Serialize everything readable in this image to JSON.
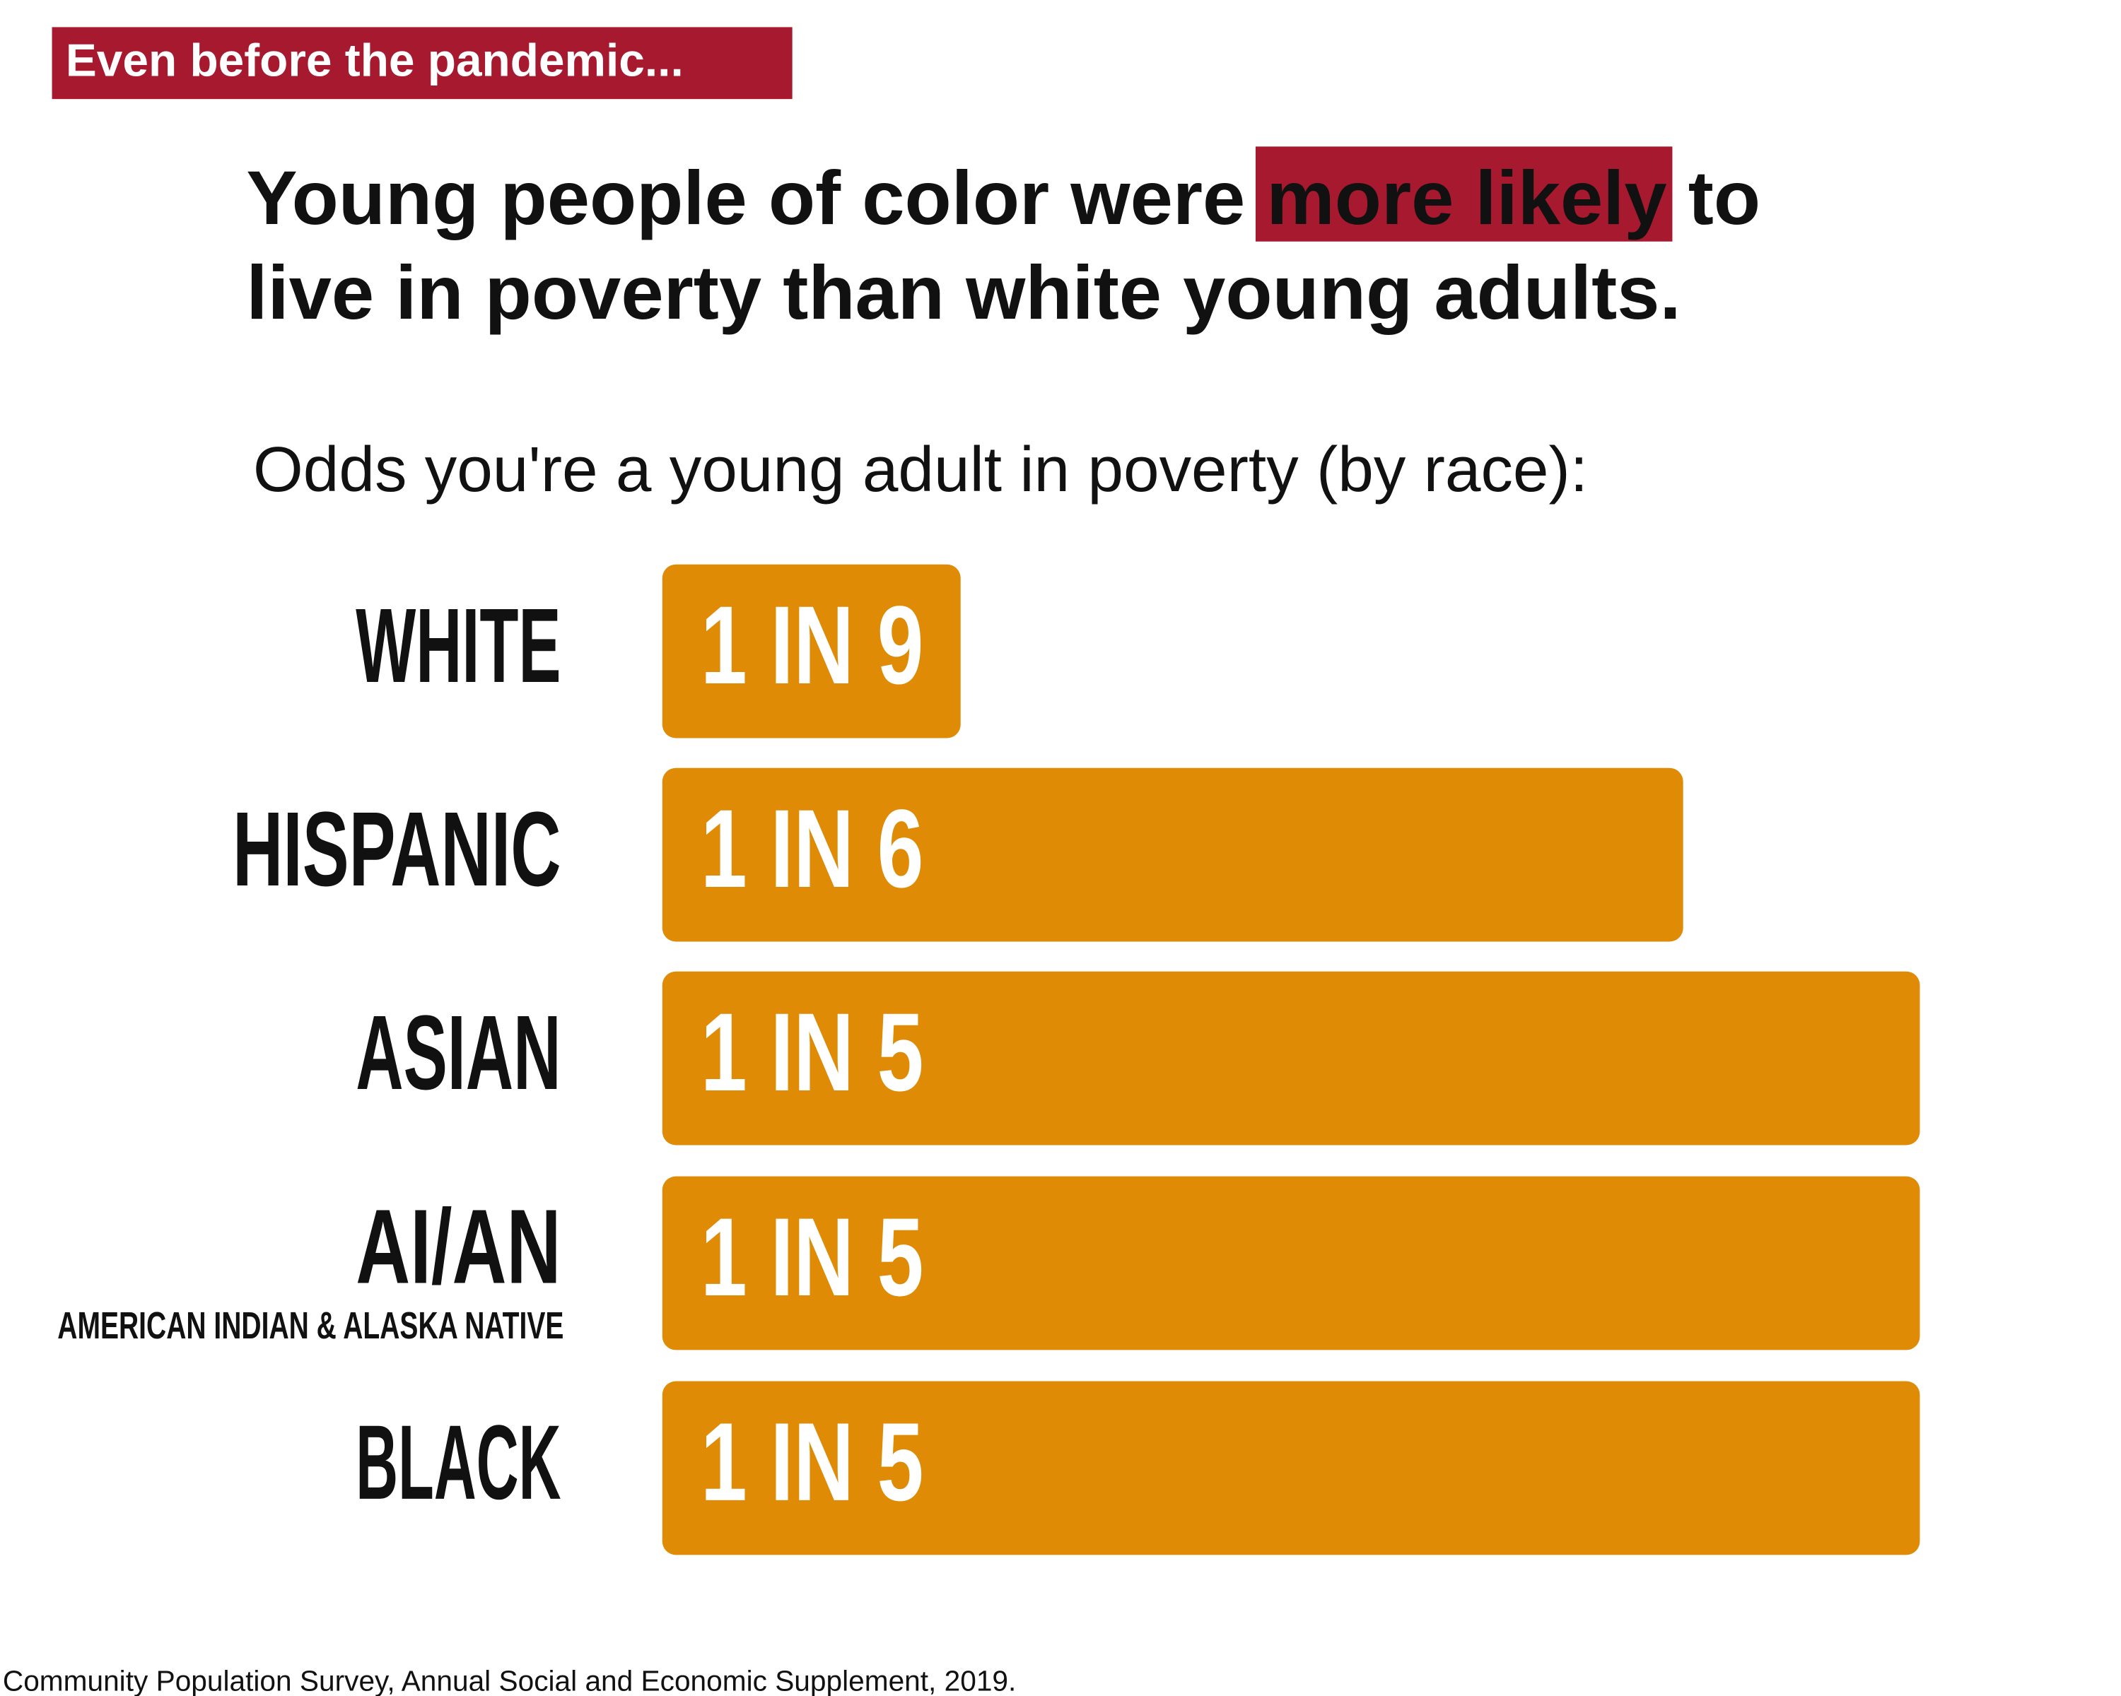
{
  "header": {
    "tag": "Even before the pandemic...",
    "title_lines": [
      [
        "Young people of color were ",
        "more likely",
        " to"
      ],
      [
        "live in poverty than white young adults."
      ]
    ],
    "subtitle": "Odds you're a young adult in poverty (by race):"
  },
  "rows": [
    {
      "label": "WHITE",
      "odds": "1 IN 9"
    },
    {
      "label": "HISPANIC",
      "odds": "1 IN 6"
    },
    {
      "label": "ASIAN",
      "odds": "1 IN 5"
    },
    {
      "label": "AI/AN",
      "note": "AMERICAN INDIAN & ALASKA NATIVE",
      "odds": "1 IN 5"
    },
    {
      "label": "BLACK",
      "odds": "1 IN 5"
    }
  ],
  "footer": "Community Population Survey, Annual Social and Economic Supplement, 2019."
}
